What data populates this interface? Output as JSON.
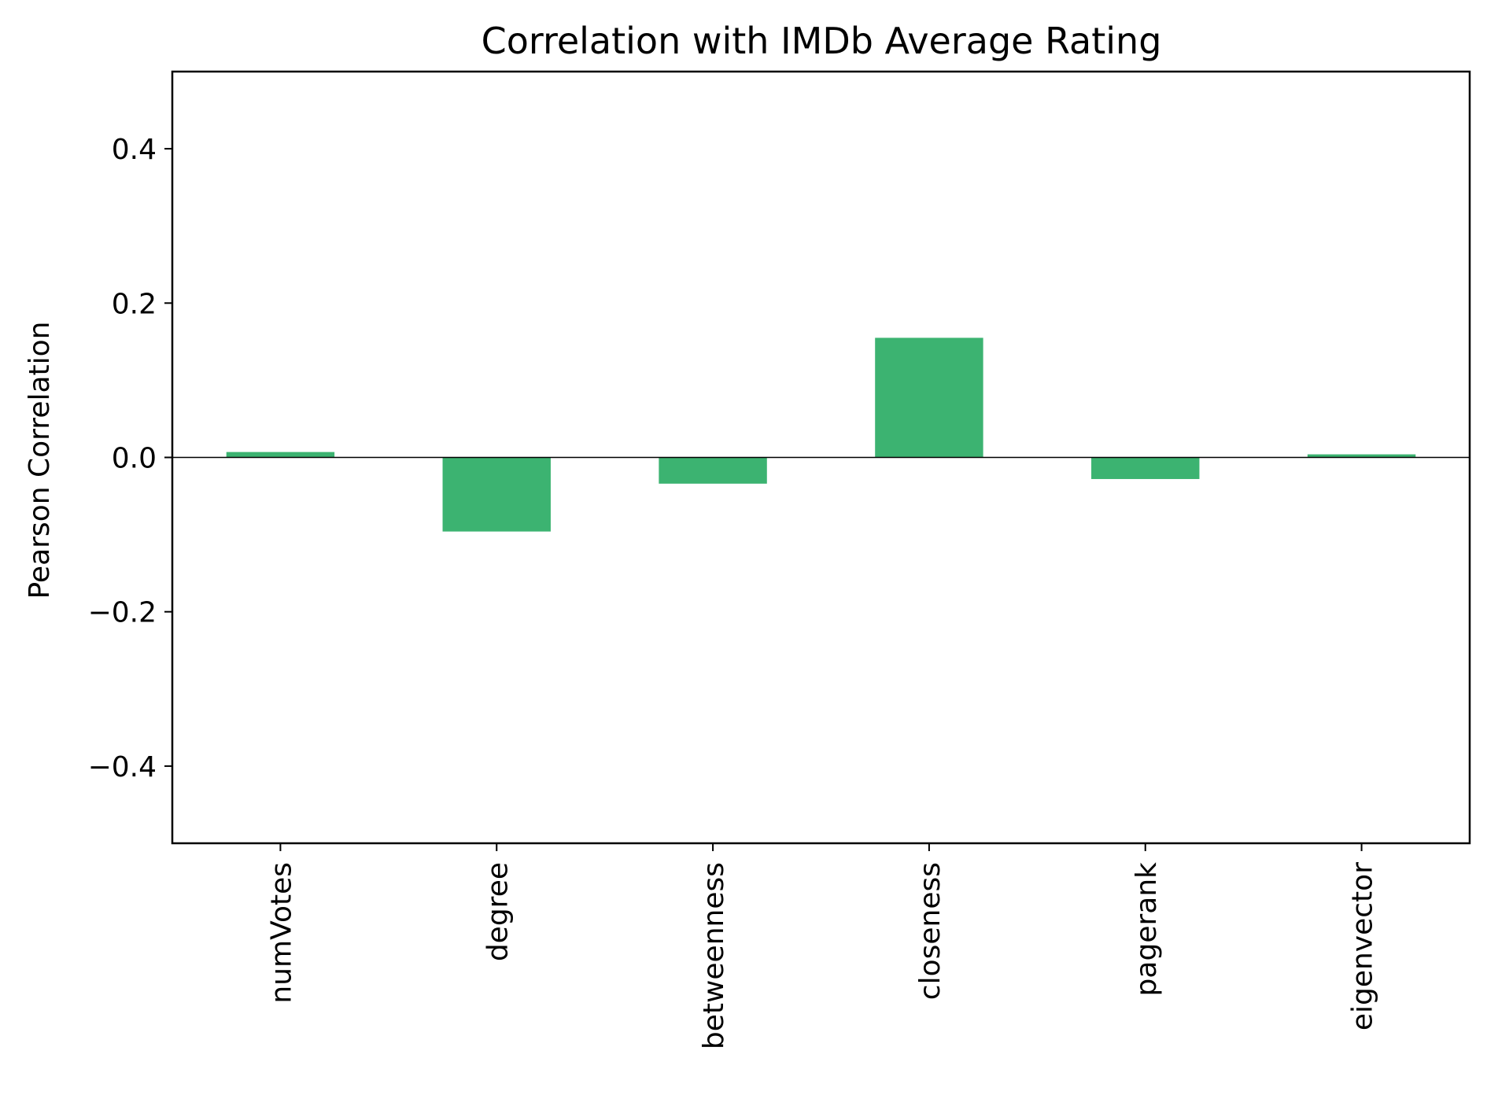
{
  "chart_data": {
    "type": "bar",
    "title": "Correlation with IMDb Average Rating",
    "xlabel": "",
    "ylabel": "Pearson Correlation",
    "categories": [
      "numVotes",
      "degree",
      "betweenness",
      "closeness",
      "pagerank",
      "eigenvector"
    ],
    "values": [
      0.007,
      -0.096,
      -0.034,
      0.155,
      -0.028,
      0.004
    ],
    "ylim": [
      -0.5,
      0.5
    ],
    "yticks": [
      -0.4,
      -0.2,
      0.0,
      0.2,
      0.4
    ],
    "ytick_labels": [
      "−0.4",
      "−0.2",
      "0.0",
      "0.2",
      "0.4"
    ],
    "bar_color": "#3cb371",
    "zero_line": true,
    "grid": false,
    "legend": "none"
  }
}
